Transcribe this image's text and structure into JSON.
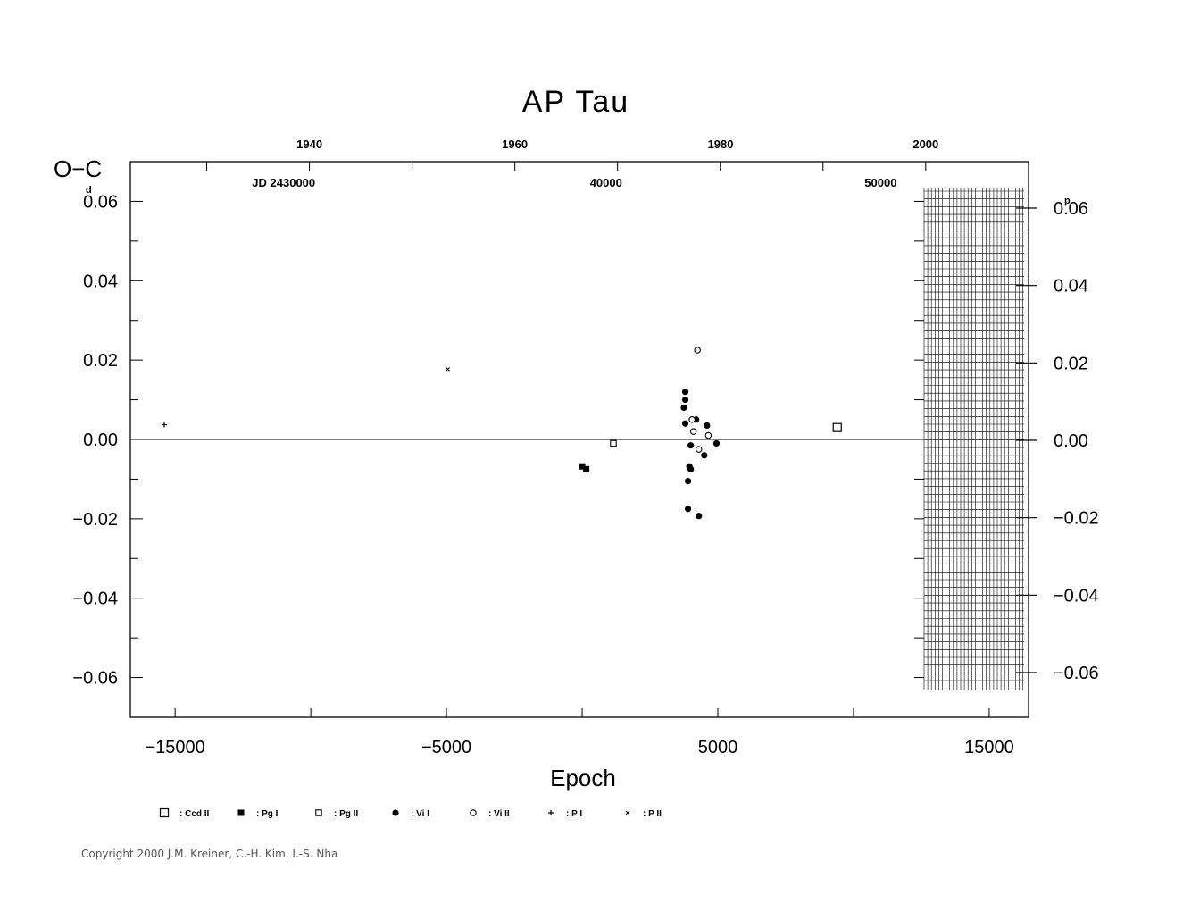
{
  "chart_data": {
    "type": "scatter",
    "title": "AP Tau",
    "ylabel": "O−C",
    "y_unit_left": "d",
    "y_unit_right": "p",
    "xlabel": "Epoch",
    "xlim": [
      -16650,
      16450
    ],
    "ylim": [
      -0.07,
      0.07
    ],
    "x_ticks": [
      -15000,
      -5000,
      5000,
      15000
    ],
    "x_tick_labels": [
      "−15000",
      "−5000",
      "5000",
      "15000"
    ],
    "y_ticks": [
      0.06,
      0.04,
      0.02,
      0.0,
      -0.02,
      -0.04,
      -0.06
    ],
    "y_tick_labels": [
      "0.06",
      "0.04",
      "0.02",
      "0.00",
      "−0.02",
      "−0.04",
      "−0.06"
    ],
    "y_right_ticks": [
      0.06,
      0.04,
      0.02,
      0.0,
      -0.02,
      -0.04,
      -0.06
    ],
    "y_right_tick_labels": [
      "0.06",
      "0.04",
      "0.02",
      "0.00",
      "−0.02",
      "−0.04",
      "−0.06"
    ],
    "top_year_ticks": [
      {
        "epoch": -10050,
        "label": "1940"
      },
      {
        "epoch": -2480,
        "label": "1960"
      },
      {
        "epoch": 5100,
        "label": "1980"
      },
      {
        "epoch": 12660,
        "label": "2000"
      }
    ],
    "top_jd_labels": [
      {
        "epoch": -11000,
        "label": "JD  2430000"
      },
      {
        "epoch": 880,
        "label": "40000"
      },
      {
        "epoch": 11000,
        "label": "50000"
      }
    ],
    "series": [
      {
        "name": "Ccd II",
        "marker": "square-open-large",
        "points": [
          [
            9400,
            0.003
          ]
        ]
      },
      {
        "name": "Pg I",
        "marker": "square-filled",
        "points": [
          [
            0,
            -0.0068
          ],
          [
            150,
            -0.0075
          ]
        ]
      },
      {
        "name": "Pg II",
        "marker": "square-open-small",
        "points": [
          [
            1150,
            -0.001
          ]
        ]
      },
      {
        "name": "Vi I",
        "marker": "circle-filled",
        "points": [
          [
            3800,
            0.012
          ],
          [
            3800,
            0.01
          ],
          [
            3750,
            0.008
          ],
          [
            3800,
            0.004
          ],
          [
            4200,
            0.005
          ],
          [
            4600,
            0.0035
          ],
          [
            4000,
            -0.0015
          ],
          [
            4500,
            -0.004
          ],
          [
            4950,
            -0.001
          ],
          [
            3950,
            -0.0068
          ],
          [
            4000,
            -0.0075
          ],
          [
            3900,
            -0.0105
          ],
          [
            3900,
            -0.0175
          ],
          [
            4300,
            -0.0193
          ]
        ]
      },
      {
        "name": "Vi II",
        "marker": "circle-open",
        "points": [
          [
            4250,
            0.0225
          ],
          [
            4050,
            0.005
          ],
          [
            4100,
            0.002
          ],
          [
            4650,
            0.001
          ],
          [
            4300,
            -0.0025
          ]
        ]
      },
      {
        "name": "P I",
        "marker": "plus",
        "points": [
          [
            -15400,
            0.0037
          ]
        ]
      },
      {
        "name": "P II",
        "marker": "cross",
        "points": [
          [
            -4950,
            0.0177
          ]
        ]
      }
    ],
    "grid": false,
    "legend_position": "bottom",
    "legend_labels": [
      ": Ccd II",
      ": Pg I",
      ": Pg II",
      ": Vi I",
      ": Vi II",
      ": P I",
      ": P II"
    ]
  },
  "copyright": "Copyright 2000 J.M. Kreiner, C.-H. Kim, I.-S. Nha"
}
